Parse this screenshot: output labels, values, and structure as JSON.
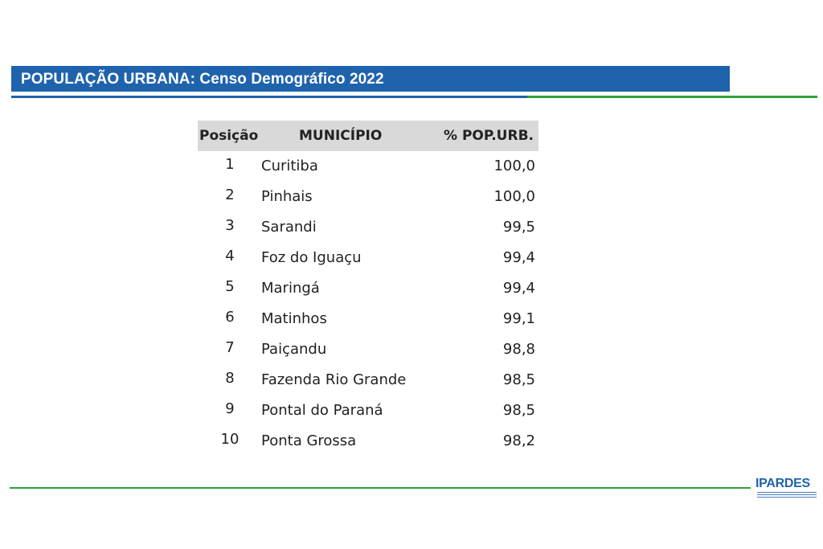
{
  "title": "POPULAÇÃO URBANA: Censo Demográfico 2022",
  "table": {
    "headers": {
      "position": "Posição",
      "municipality": "MUNICÍPIO",
      "percent": "% POP.URB."
    },
    "rows": [
      {
        "pos": "1",
        "name": "Curitiba",
        "pct": "100,0"
      },
      {
        "pos": "2",
        "name": "Pinhais",
        "pct": "100,0"
      },
      {
        "pos": "3",
        "name": "Sarandi",
        "pct": "99,5"
      },
      {
        "pos": "4",
        "name": "Foz do Iguaçu",
        "pct": "99,4"
      },
      {
        "pos": "5",
        "name": "Maringá",
        "pct": "99,4"
      },
      {
        "pos": "6",
        "name": "Matinhos",
        "pct": "99,1"
      },
      {
        "pos": "7",
        "name": "Paiçandu",
        "pct": "98,8"
      },
      {
        "pos": "8",
        "name": "Fazenda Rio Grande",
        "pct": "98,5"
      },
      {
        "pos": "9",
        "name": "Pontal do Paraná",
        "pct": "98,5"
      },
      {
        "pos": "10",
        "name": "Ponta Grossa",
        "pct": "98,2"
      }
    ]
  },
  "logo": {
    "text": "IPARDES"
  },
  "colors": {
    "title_bar": "#1f63ad",
    "accent_green": "#2ea03f",
    "header_bg": "#d9d9d9"
  }
}
